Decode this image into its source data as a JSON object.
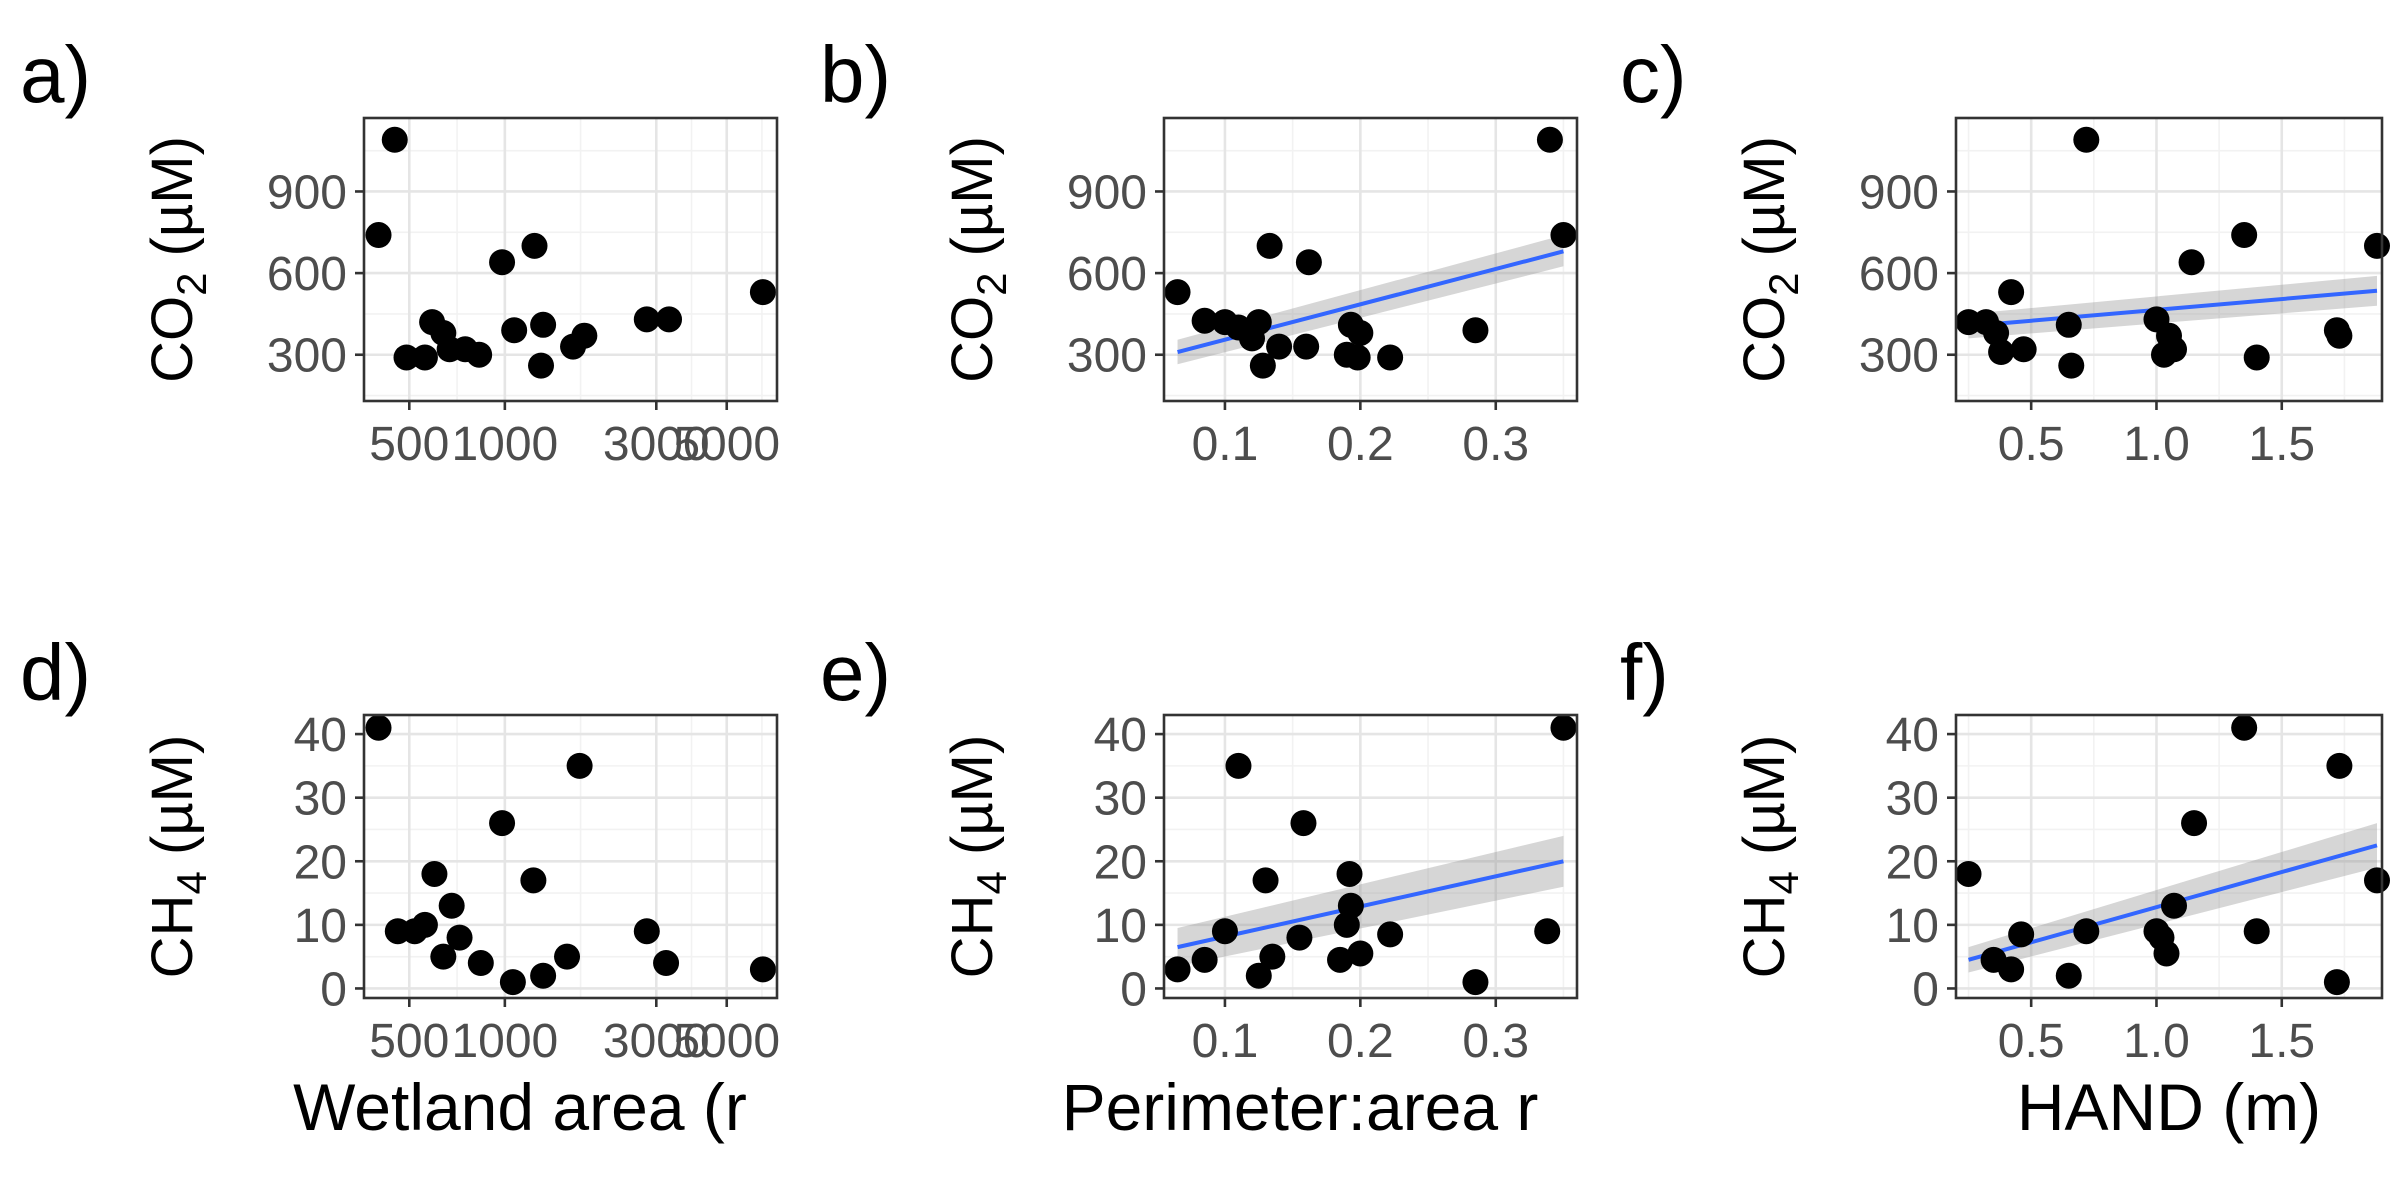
{
  "chart_data": [
    {
      "type": "scatter",
      "panel_tag": "a)",
      "ylabel": {
        "main": "CO",
        "sub": "2",
        "unit": " (µM)"
      },
      "xlabel": "Wetland area (r",
      "x_scale": "log",
      "xlim": [
        360,
        7200
      ],
      "ylim": [
        130,
        1170
      ],
      "x_ticks": [
        500,
        1000,
        3000,
        5000
      ],
      "x_tick_labels": [
        "500",
        "1000",
        "3000",
        "5000"
      ],
      "y_ticks": [
        300,
        600,
        900
      ],
      "y_tick_labels": [
        "300",
        "600",
        "900"
      ],
      "fit": null,
      "points": [
        [
          400,
          740
        ],
        [
          450,
          1090
        ],
        [
          490,
          290
        ],
        [
          560,
          290
        ],
        [
          590,
          420
        ],
        [
          640,
          380
        ],
        [
          670,
          320
        ],
        [
          750,
          320
        ],
        [
          830,
          300
        ],
        [
          980,
          640
        ],
        [
          1070,
          390
        ],
        [
          1240,
          700
        ],
        [
          1300,
          260
        ],
        [
          1320,
          410
        ],
        [
          1640,
          330
        ],
        [
          1780,
          370
        ],
        [
          2800,
          430
        ],
        [
          3290,
          430
        ],
        [
          6500,
          530
        ]
      ]
    },
    {
      "type": "scatter",
      "panel_tag": "b)",
      "ylabel": {
        "main": "CO",
        "sub": "2",
        "unit": " (µM)"
      },
      "xlabel": "Perimeter:area r",
      "x_scale": "linear",
      "xlim": [
        0.055,
        0.36
      ],
      "ylim": [
        130,
        1170
      ],
      "x_ticks": [
        0.1,
        0.2,
        0.3
      ],
      "x_tick_labels": [
        "0.1",
        "0.2",
        "0.3"
      ],
      "y_ticks": [
        300,
        600,
        900
      ],
      "y_tick_labels": [
        "300",
        "600",
        "900"
      ],
      "fit": {
        "x": [
          0.065,
          0.35
        ],
        "y": [
          310,
          680
        ],
        "band_start": [
          265,
          355
        ],
        "band_end": [
          625,
          740
        ]
      },
      "points": [
        [
          0.065,
          530
        ],
        [
          0.085,
          425
        ],
        [
          0.1,
          420
        ],
        [
          0.11,
          400
        ],
        [
          0.12,
          360
        ],
        [
          0.125,
          420
        ],
        [
          0.128,
          260
        ],
        [
          0.133,
          700
        ],
        [
          0.14,
          330
        ],
        [
          0.16,
          330
        ],
        [
          0.162,
          640
        ],
        [
          0.19,
          300
        ],
        [
          0.193,
          410
        ],
        [
          0.198,
          290
        ],
        [
          0.2,
          380
        ],
        [
          0.222,
          290
        ],
        [
          0.285,
          390
        ],
        [
          0.34,
          1090
        ],
        [
          0.35,
          740
        ]
      ]
    },
    {
      "type": "scatter",
      "panel_tag": "c)",
      "ylabel": {
        "main": "CO",
        "sub": "2",
        "unit": " (µM)"
      },
      "xlabel": "HAND (m)",
      "x_scale": "linear",
      "xlim": [
        0.2,
        1.9
      ],
      "ylim": [
        130,
        1170
      ],
      "x_ticks": [
        0.5,
        1.0,
        1.5
      ],
      "x_tick_labels": [
        "0.5",
        "1.0",
        "1.5"
      ],
      "y_ticks": [
        300,
        600,
        900
      ],
      "y_tick_labels": [
        "300",
        "600",
        "900"
      ],
      "fit": {
        "x": [
          0.25,
          1.88
        ],
        "y": [
          405,
          535
        ],
        "band_start": [
          360,
          450
        ],
        "band_end": [
          480,
          590
        ]
      },
      "points": [
        [
          0.25,
          420
        ],
        [
          0.32,
          420
        ],
        [
          0.36,
          380
        ],
        [
          0.38,
          310
        ],
        [
          0.42,
          530
        ],
        [
          0.47,
          320
        ],
        [
          0.65,
          410
        ],
        [
          0.66,
          260
        ],
        [
          0.72,
          1090
        ],
        [
          1.0,
          430
        ],
        [
          1.03,
          300
        ],
        [
          1.05,
          370
        ],
        [
          1.07,
          320
        ],
        [
          1.14,
          640
        ],
        [
          1.35,
          740
        ],
        [
          1.4,
          290
        ],
        [
          1.72,
          390
        ],
        [
          1.73,
          370
        ],
        [
          1.88,
          700
        ]
      ]
    },
    {
      "type": "scatter",
      "panel_tag": "d)",
      "ylabel": {
        "main": "CH",
        "sub": "4",
        "unit": " (µM)"
      },
      "xlabel": "Wetland area (r",
      "x_scale": "log",
      "xlim": [
        360,
        7200
      ],
      "ylim": [
        -1.5,
        43
      ],
      "x_ticks": [
        500,
        1000,
        3000,
        5000
      ],
      "x_tick_labels": [
        "500",
        "1000",
        "3000",
        "5000"
      ],
      "y_ticks": [
        0,
        10,
        20,
        30,
        40
      ],
      "y_tick_labels": [
        "0",
        "10",
        "20",
        "30",
        "40"
      ],
      "fit": null,
      "points": [
        [
          400,
          41
        ],
        [
          460,
          9
        ],
        [
          520,
          9
        ],
        [
          560,
          10
        ],
        [
          600,
          18
        ],
        [
          640,
          5
        ],
        [
          680,
          13
        ],
        [
          720,
          8
        ],
        [
          840,
          4
        ],
        [
          980,
          26
        ],
        [
          1060,
          1
        ],
        [
          1230,
          17
        ],
        [
          1320,
          2
        ],
        [
          1570,
          5
        ],
        [
          1720,
          35
        ],
        [
          2800,
          9
        ],
        [
          3220,
          4
        ],
        [
          6500,
          3
        ]
      ]
    },
    {
      "type": "scatter",
      "panel_tag": "e)",
      "ylabel": {
        "main": "CH",
        "sub": "4",
        "unit": " (µM)"
      },
      "xlabel": "Perimeter:area r",
      "x_scale": "linear",
      "xlim": [
        0.055,
        0.36
      ],
      "ylim": [
        -1.5,
        43
      ],
      "x_ticks": [
        0.1,
        0.2,
        0.3
      ],
      "x_tick_labels": [
        "0.1",
        "0.2",
        "0.3"
      ],
      "y_ticks": [
        0,
        10,
        20,
        30,
        40
      ],
      "y_tick_labels": [
        "0",
        "10",
        "20",
        "30",
        "40"
      ],
      "fit": {
        "x": [
          0.065,
          0.35
        ],
        "y": [
          6.5,
          20
        ],
        "band_start": [
          3.5,
          9.5
        ],
        "band_end": [
          16,
          24
        ]
      },
      "points": [
        [
          0.065,
          3
        ],
        [
          0.085,
          4.5
        ],
        [
          0.1,
          9
        ],
        [
          0.11,
          35
        ],
        [
          0.125,
          2
        ],
        [
          0.13,
          17
        ],
        [
          0.135,
          5
        ],
        [
          0.155,
          8
        ],
        [
          0.158,
          26
        ],
        [
          0.185,
          4.5
        ],
        [
          0.19,
          10
        ],
        [
          0.192,
          18
        ],
        [
          0.193,
          13
        ],
        [
          0.2,
          5.5
        ],
        [
          0.222,
          8.5
        ],
        [
          0.285,
          1
        ],
        [
          0.338,
          9
        ],
        [
          0.35,
          41
        ]
      ]
    },
    {
      "type": "scatter",
      "panel_tag": "f)",
      "ylabel": {
        "main": "CH",
        "sub": "4",
        "unit": " (µM)"
      },
      "xlabel": "HAND (m)",
      "x_scale": "linear",
      "xlim": [
        0.2,
        1.9
      ],
      "ylim": [
        -1.5,
        43
      ],
      "x_ticks": [
        0.5,
        1.0,
        1.5
      ],
      "x_tick_labels": [
        "0.5",
        "1.0",
        "1.5"
      ],
      "y_ticks": [
        0,
        10,
        20,
        30,
        40
      ],
      "y_tick_labels": [
        "0",
        "10",
        "20",
        "30",
        "40"
      ],
      "fit": {
        "x": [
          0.25,
          1.88
        ],
        "y": [
          4.5,
          22.5
        ],
        "band_start": [
          2.5,
          6.5
        ],
        "band_end": [
          19,
          26
        ]
      },
      "points": [
        [
          0.25,
          18
        ],
        [
          0.35,
          4.5
        ],
        [
          0.42,
          3
        ],
        [
          0.46,
          8.5
        ],
        [
          0.65,
          2
        ],
        [
          0.72,
          9
        ],
        [
          1.0,
          9
        ],
        [
          1.02,
          8
        ],
        [
          1.04,
          5.5
        ],
        [
          1.07,
          13
        ],
        [
          1.15,
          26
        ],
        [
          1.35,
          41
        ],
        [
          1.4,
          9
        ],
        [
          1.72,
          1
        ],
        [
          1.73,
          35
        ],
        [
          1.88,
          17
        ]
      ]
    }
  ]
}
